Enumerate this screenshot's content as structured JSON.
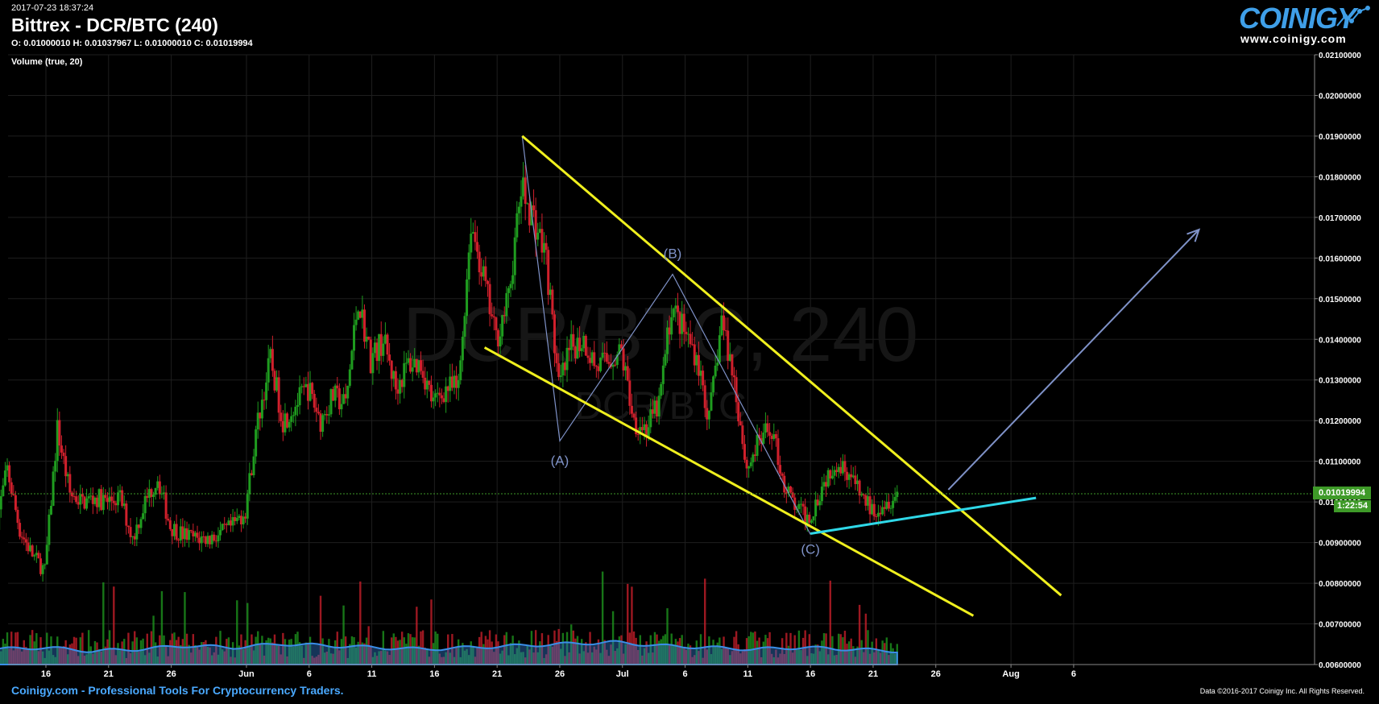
{
  "header": {
    "timestamp": "2017-07-23 18:37:24",
    "title": "Bittrex - DCR/BTC (240)",
    "ohlc": "O: 0.01000010 H: 0.01037967 L: 0.01000010 C: 0.01019994",
    "indicator": "Volume (true, 20)",
    "watermark_main": "DCR/BTC, 240",
    "watermark_sub": "DCR/BTC"
  },
  "brand": {
    "logo_text": "COINIGY",
    "url": "www.coinigy.com"
  },
  "footer": {
    "left": "Coinigy.com - Professional Tools For Cryptocurrency Traders.",
    "right": "Data ©2016-2017 Coinigy Inc. All Rights Reserved."
  },
  "price_badge": {
    "value": "0.01019994",
    "timer": "1:22:54"
  },
  "colors": {
    "up": "#1f9c1f",
    "down": "#d0202c",
    "trend": "#f0f01e",
    "support": "#2fd8e8",
    "wave": "#7f92c8",
    "badge": "#3e9a28",
    "footer_text": "#4aa9ff"
  },
  "chart_data": {
    "type": "candlestick",
    "y_axis": {
      "side": "right",
      "min": 0.006,
      "max": 0.021,
      "ticks": [
        "0.02100000",
        "0.02000000",
        "0.01900000",
        "0.01800000",
        "0.01700000",
        "0.01600000",
        "0.01500000",
        "0.01400000",
        "0.01300000",
        "0.01200000",
        "0.01100000",
        "0.01000000",
        "0.00900000",
        "0.00800000",
        "0.00700000",
        "0.00600000"
      ]
    },
    "x_axis": {
      "start": "2017-05-12",
      "end": "2017-08-12",
      "tick_labels": [
        {
          "label": "16",
          "date": "2017-05-16"
        },
        {
          "label": "21",
          "date": "2017-05-21"
        },
        {
          "label": "26",
          "date": "2017-05-26"
        },
        {
          "label": "Jun",
          "date": "2017-06-01"
        },
        {
          "label": "6",
          "date": "2017-06-06"
        },
        {
          "label": "11",
          "date": "2017-06-11"
        },
        {
          "label": "16",
          "date": "2017-06-16"
        },
        {
          "label": "21",
          "date": "2017-06-21"
        },
        {
          "label": "26",
          "date": "2017-06-26"
        },
        {
          "label": "Jul",
          "date": "2017-07-01"
        },
        {
          "label": "6",
          "date": "2017-07-06"
        },
        {
          "label": "11",
          "date": "2017-07-11"
        },
        {
          "label": "16",
          "date": "2017-07-16"
        },
        {
          "label": "21",
          "date": "2017-07-21"
        },
        {
          "label": "26",
          "date": "2017-07-26"
        },
        {
          "label": "Aug",
          "date": "2017-08-01"
        },
        {
          "label": "6",
          "date": "2017-08-06"
        }
      ]
    },
    "price_path": [
      [
        "2017-05-12",
        0.0093
      ],
      [
        "2017-05-13",
        0.0108
      ],
      [
        "2017-05-14",
        0.0093
      ],
      [
        "2017-05-15",
        0.0087
      ],
      [
        "2017-05-16",
        0.0083
      ],
      [
        "2017-05-17",
        0.0118
      ],
      [
        "2017-05-18",
        0.0102
      ],
      [
        "2017-05-19",
        0.01
      ],
      [
        "2017-05-20",
        0.0101
      ],
      [
        "2017-05-21",
        0.01
      ],
      [
        "2017-05-22",
        0.0101
      ],
      [
        "2017-05-23",
        0.0091
      ],
      [
        "2017-05-24",
        0.01
      ],
      [
        "2017-05-25",
        0.0106
      ],
      [
        "2017-05-26",
        0.0094
      ],
      [
        "2017-05-27",
        0.0092
      ],
      [
        "2017-05-28",
        0.0091
      ],
      [
        "2017-05-29",
        0.0091
      ],
      [
        "2017-05-30",
        0.0092
      ],
      [
        "2017-05-31",
        0.0094
      ],
      [
        "2017-06-01",
        0.0098
      ],
      [
        "2017-06-02",
        0.012
      ],
      [
        "2017-06-03",
        0.0135
      ],
      [
        "2017-06-04",
        0.012
      ],
      [
        "2017-06-05",
        0.0124
      ],
      [
        "2017-06-06",
        0.0128
      ],
      [
        "2017-06-07",
        0.012
      ],
      [
        "2017-06-08",
        0.0126
      ],
      [
        "2017-06-09",
        0.0124
      ],
      [
        "2017-06-10",
        0.015
      ],
      [
        "2017-06-11",
        0.0135
      ],
      [
        "2017-06-12",
        0.014
      ],
      [
        "2017-06-13",
        0.0128
      ],
      [
        "2017-06-14",
        0.0134
      ],
      [
        "2017-06-15",
        0.0134
      ],
      [
        "2017-06-16",
        0.0124
      ],
      [
        "2017-06-17",
        0.0128
      ],
      [
        "2017-06-18",
        0.0128
      ],
      [
        "2017-06-19",
        0.0169
      ],
      [
        "2017-06-20",
        0.0155
      ],
      [
        "2017-06-21",
        0.014
      ],
      [
        "2017-06-22",
        0.015
      ],
      [
        "2017-06-23",
        0.0177
      ],
      [
        "2017-06-24",
        0.017
      ],
      [
        "2017-06-25",
        0.016
      ],
      [
        "2017-06-26",
        0.0128
      ],
      [
        "2017-06-27",
        0.0138
      ],
      [
        "2017-06-28",
        0.014
      ],
      [
        "2017-06-29",
        0.0133
      ],
      [
        "2017-06-30",
        0.0135
      ],
      [
        "2017-07-01",
        0.0137
      ],
      [
        "2017-07-02",
        0.012
      ],
      [
        "2017-07-03",
        0.0118
      ],
      [
        "2017-07-04",
        0.0124
      ],
      [
        "2017-07-05",
        0.0148
      ],
      [
        "2017-07-06",
        0.0142
      ],
      [
        "2017-07-07",
        0.0136
      ],
      [
        "2017-07-08",
        0.012
      ],
      [
        "2017-07-09",
        0.0145
      ],
      [
        "2017-07-10",
        0.013
      ],
      [
        "2017-07-11",
        0.0108
      ],
      [
        "2017-07-12",
        0.0115
      ],
      [
        "2017-07-13",
        0.0118
      ],
      [
        "2017-07-14",
        0.0104
      ],
      [
        "2017-07-15",
        0.0098
      ],
      [
        "2017-07-16",
        0.0096
      ],
      [
        "2017-07-17",
        0.0104
      ],
      [
        "2017-07-18",
        0.011
      ],
      [
        "2017-07-19",
        0.0108
      ],
      [
        "2017-07-20",
        0.0102
      ],
      [
        "2017-07-21",
        0.0098
      ],
      [
        "2017-07-22",
        0.01
      ],
      [
        "2017-07-23",
        0.0102
      ]
    ],
    "volume_profile": [
      0.5,
      0.6,
      0.4,
      0.5,
      0.7,
      0.6,
      0.8,
      0.7,
      0.6,
      0.5,
      0.6,
      0.7,
      0.8,
      0.9,
      0.7,
      0.6,
      0.5,
      0.6,
      0.5,
      0.4
    ],
    "drawings": {
      "upper_trend": [
        [
          "2017-06-23",
          0.019
        ],
        [
          "2017-08-05",
          0.0077
        ]
      ],
      "lower_trend": [
        [
          "2017-06-20",
          0.0138
        ],
        [
          "2017-07-29",
          0.0072
        ]
      ],
      "support": [
        [
          "2017-07-16",
          0.00922
        ],
        [
          "2017-08-03",
          0.0101
        ]
      ],
      "wave_path": [
        [
          "2017-06-23",
          0.019
        ],
        [
          "2017-06-26",
          0.0115
        ],
        [
          "2017-07-05",
          0.0156
        ],
        [
          "2017-07-16",
          0.0092
        ]
      ],
      "projection_arrow": [
        [
          "2017-07-27",
          0.0103
        ],
        [
          "2017-08-16",
          0.0167
        ]
      ],
      "wave_labels": [
        {
          "text": "(A)",
          "date": "2017-06-26",
          "price": 0.0109
        },
        {
          "text": "(B)",
          "date": "2017-07-05",
          "price": 0.016
        },
        {
          "text": "(C)",
          "date": "2017-07-16",
          "price": 0.00872
        }
      ]
    },
    "current_price": 0.01019994
  }
}
